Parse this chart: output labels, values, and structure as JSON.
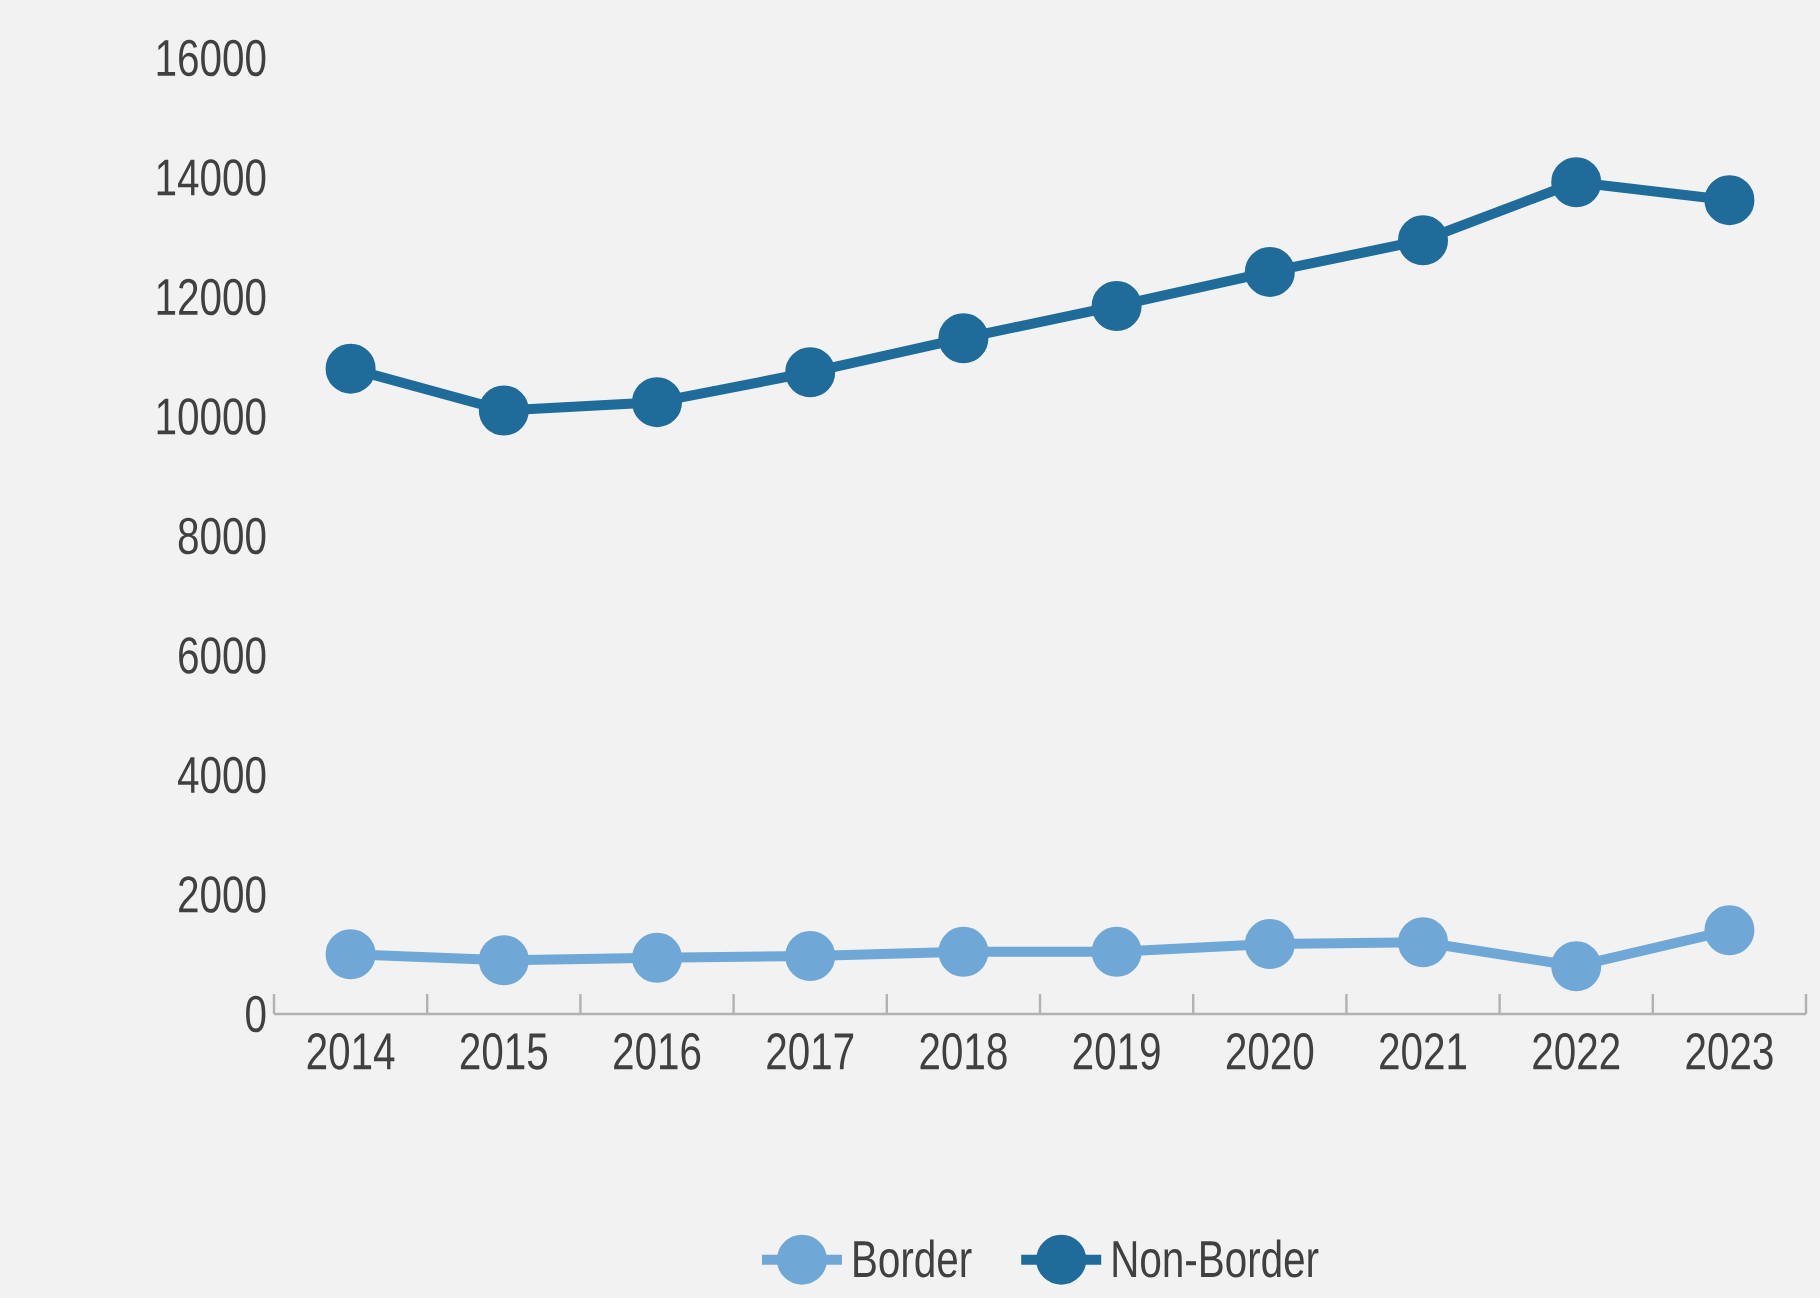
{
  "chart_data": {
    "type": "line",
    "categories": [
      "2014",
      "2015",
      "2016",
      "2017",
      "2018",
      "2019",
      "2020",
      "2021",
      "2022",
      "2023"
    ],
    "series": [
      {
        "name": "Border",
        "color": "#6fa8d6",
        "values": [
          1000,
          900,
          940,
          970,
          1040,
          1040,
          1170,
          1200,
          800,
          1400
        ]
      },
      {
        "name": "Non-Border",
        "color": "#1f6b99",
        "values": [
          10800,
          10100,
          10240,
          10740,
          11310,
          11850,
          12420,
          12950,
          13920,
          13620
        ]
      }
    ],
    "ylim": [
      0,
      16000
    ],
    "yticks": [
      0,
      2000,
      4000,
      6000,
      8000,
      10000,
      12000,
      14000,
      16000
    ],
    "legend": "bottom",
    "marker": "circle",
    "line_style": "solid"
  }
}
